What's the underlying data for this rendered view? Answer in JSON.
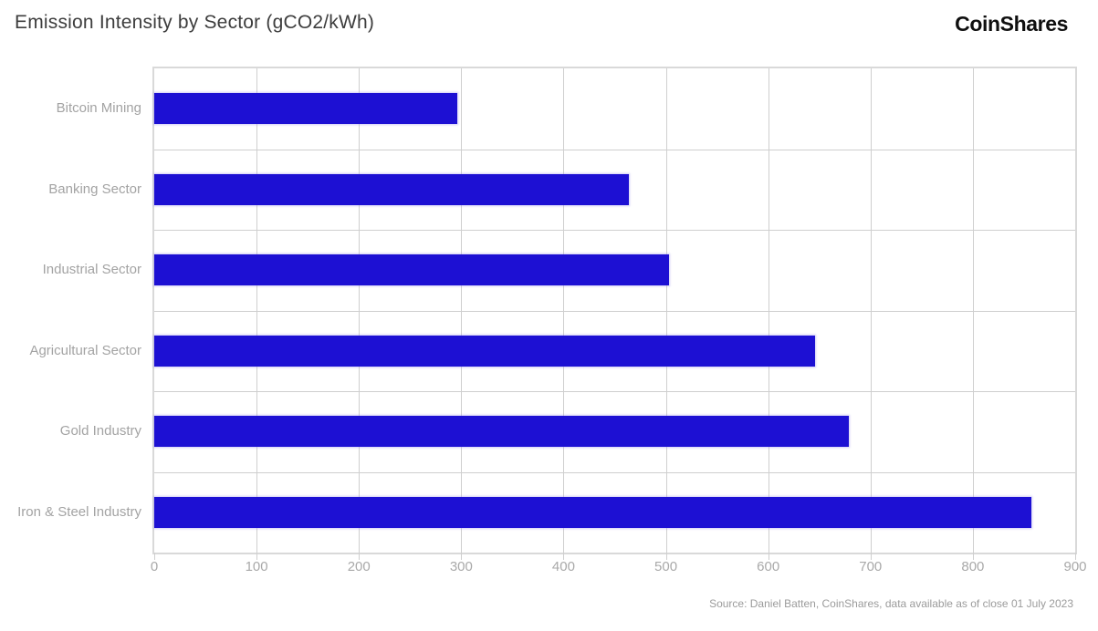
{
  "header": {
    "title": "Emission Intensity by Sector (gCO2/kWh)",
    "logo": "CoinShares"
  },
  "chart_data": {
    "type": "bar",
    "orientation": "horizontal",
    "title": "Emission Intensity by Sector (gCO2/kWh)",
    "categories": [
      "Bitcoin Mining",
      "Banking Sector",
      "Industrial Sector",
      "Agricultural Sector",
      "Gold Industry",
      "Iron & Steel Industry"
    ],
    "values": [
      296,
      464,
      503,
      646,
      679,
      857
    ],
    "unit": "gCO2/kWh",
    "xlim": [
      0,
      900
    ],
    "x_ticks": [
      0,
      100,
      200,
      300,
      400,
      500,
      600,
      700,
      800,
      900
    ],
    "grid": true,
    "legend": "none",
    "bar_color": "#1d10d3",
    "grid_color": "#cfcfcf",
    "label_color": "#a3a3a3"
  },
  "footer": {
    "source": "Source: Daniel Batten, CoinShares, data available as of close 01 July 2023"
  }
}
